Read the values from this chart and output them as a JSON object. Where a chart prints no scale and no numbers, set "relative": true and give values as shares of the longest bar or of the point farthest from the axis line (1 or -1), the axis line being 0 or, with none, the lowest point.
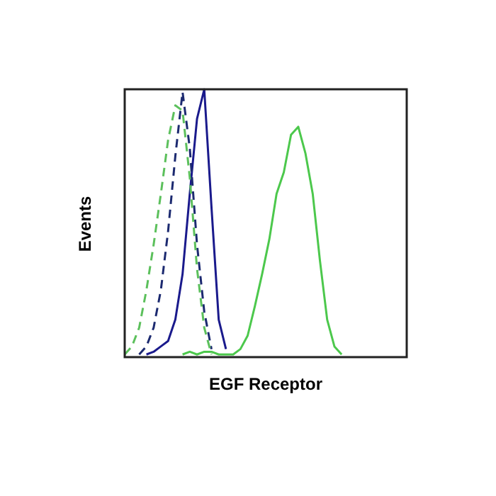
{
  "chart_data": {
    "type": "line",
    "relative": true,
    "xlabel": "EGF Receptor",
    "ylabel": "Events",
    "marker": "none",
    "categories": [
      null,
      null,
      null,
      null,
      null,
      null,
      null,
      null,
      null,
      null,
      null,
      null,
      null,
      null,
      null,
      null,
      null,
      null,
      null,
      null,
      null,
      null,
      null,
      null,
      null,
      null,
      null,
      null,
      null,
      null,
      null,
      null,
      null,
      null,
      null,
      null,
      null,
      null,
      null,
      null
    ],
    "series": [
      {
        "color": "#5cc05c",
        "line_style": "dashed",
        "values": [
          0.01,
          0.04,
          0.11,
          0.25,
          0.42,
          0.61,
          0.81,
          0.94,
          0.92,
          0.67,
          0.33,
          0.11,
          0.01,
          null,
          null,
          null,
          null,
          null,
          null,
          null,
          null,
          null,
          null,
          null,
          null,
          null,
          null,
          null,
          null,
          null,
          null,
          null,
          null,
          null,
          null,
          null,
          null,
          null,
          null,
          null
        ]
      },
      {
        "color": "#1c2a70",
        "line_style": "dashed",
        "values": [
          null,
          null,
          0.01,
          0.04,
          0.11,
          0.25,
          0.47,
          0.75,
          0.99,
          0.78,
          0.42,
          0.17,
          0.03,
          null,
          null,
          null,
          null,
          null,
          null,
          null,
          null,
          null,
          null,
          null,
          null,
          null,
          null,
          null,
          null,
          null,
          null,
          null,
          null,
          null,
          null,
          null,
          null,
          null,
          null,
          null
        ]
      },
      {
        "color": "#1a1a8c",
        "line_style": "solid",
        "values": [
          null,
          null,
          null,
          0.01,
          0.02,
          0.04,
          0.06,
          0.14,
          0.31,
          0.61,
          0.89,
          1,
          0.56,
          0.14,
          0.03,
          null,
          null,
          null,
          null,
          null,
          null,
          null,
          null,
          null,
          null,
          null,
          null,
          null,
          null,
          null,
          null,
          null,
          null,
          null,
          null,
          null,
          null,
          null,
          null,
          null
        ]
      },
      {
        "color": "#4cc84c",
        "line_style": "solid",
        "values": [
          null,
          null,
          null,
          null,
          null,
          null,
          null,
          null,
          0.01,
          0.02,
          0.01,
          0.02,
          0.02,
          0.01,
          0.01,
          0.01,
          0.03,
          0.08,
          0.19,
          0.31,
          0.44,
          0.61,
          0.69,
          0.83,
          0.86,
          0.76,
          0.61,
          0.36,
          0.14,
          0.04,
          0.01,
          null,
          null,
          null,
          null,
          null,
          null,
          null,
          null,
          null
        ]
      }
    ]
  }
}
